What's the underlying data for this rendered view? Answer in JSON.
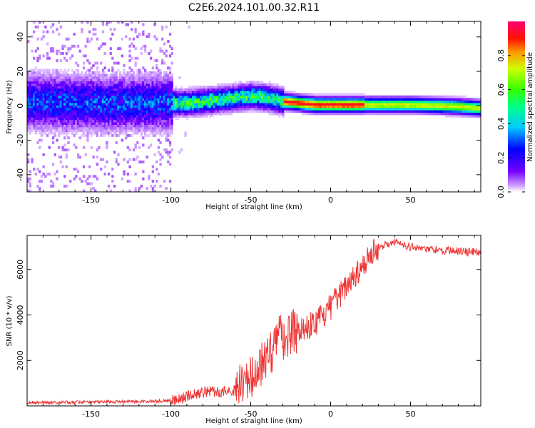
{
  "title": "C2E6.2024.101.00.32.R11",
  "colors": {
    "snr_line": "#ee3333",
    "axis": "#000000"
  },
  "chart_data": [
    {
      "type": "heatmap",
      "xlabel": "Height of straight line (km)",
      "ylabel": "Frequency (Hz)",
      "xlim": [
        -190,
        94
      ],
      "ylim": [
        -50,
        49
      ],
      "x_ticks": [
        -150,
        -100,
        -50,
        0,
        50
      ],
      "y_ticks": [
        -40,
        -20,
        0,
        20,
        40
      ],
      "colorbar": {
        "label": "Normalized spectral amplitude",
        "range": [
          0.0,
          1.0
        ],
        "ticks": [
          "0.0",
          "0.2",
          "0.4",
          "0.6",
          "0.8"
        ],
        "colormap": "hsv"
      },
      "ridge": {
        "x": [
          -190,
          -150,
          -100,
          -90,
          -80,
          -70,
          -60,
          -50,
          -40,
          -30,
          -20,
          -10,
          0,
          20,
          50,
          80,
          94
        ],
        "freq": [
          2,
          1,
          1,
          1,
          2,
          3,
          4,
          5,
          4,
          2,
          1,
          0,
          0,
          0,
          0,
          -1,
          -2
        ]
      }
    },
    {
      "type": "line",
      "xlabel": "Height of straight line (km)",
      "ylabel": "SNR (10 * v/v)",
      "xlim": [
        -190,
        94
      ],
      "ylim": [
        0,
        7500
      ],
      "x_ticks": [
        -150,
        -100,
        -50,
        0,
        50
      ],
      "y_ticks": [
        2000,
        4000,
        6000
      ],
      "series": [
        {
          "x": [
            -190,
            -170,
            -150,
            -120,
            -105,
            -100,
            -95,
            -90,
            -85,
            -80,
            -75,
            -70,
            -65,
            -60,
            -55,
            -50,
            -45,
            -40,
            -35,
            -30,
            -25,
            -20,
            -15,
            -10,
            -5,
            0,
            5,
            10,
            15,
            20,
            25,
            30,
            35,
            40,
            45,
            50,
            55,
            60,
            70,
            80,
            94
          ],
          "values": [
            150,
            150,
            170,
            190,
            220,
            250,
            320,
            420,
            540,
            600,
            630,
            620,
            640,
            700,
            850,
            1200,
            1700,
            2200,
            2700,
            3100,
            3300,
            3400,
            3500,
            3650,
            3900,
            4350,
            4800,
            5300,
            5800,
            6200,
            6600,
            6950,
            7150,
            7200,
            7150,
            7000,
            6950,
            6900,
            6850,
            6800,
            6750
          ]
        }
      ]
    }
  ]
}
